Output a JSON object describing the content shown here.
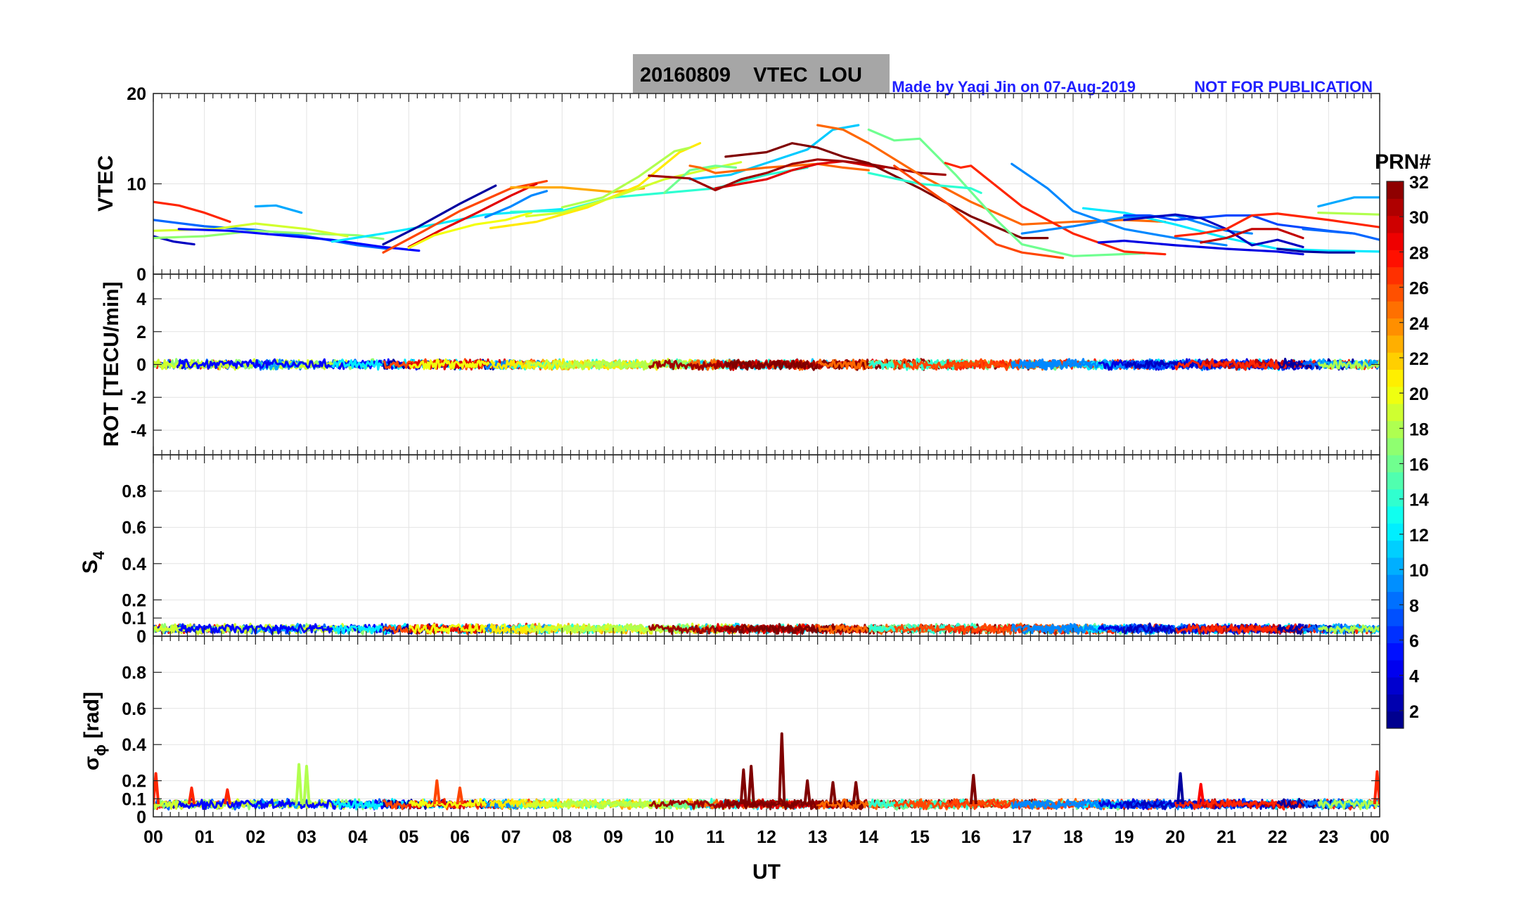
{
  "title": {
    "text": "20160809    VTEC  LOU",
    "credit": "Made by Yaqi Jin on 07-Aug-2019",
    "notice": "NOT FOR PUBLICATION"
  },
  "colorbar": {
    "label": "PRN#",
    "ticks": [
      "2",
      "4",
      "6",
      "8",
      "10",
      "12",
      "14",
      "16",
      "18",
      "20",
      "22",
      "24",
      "26",
      "28",
      "30",
      "32"
    ],
    "range": [
      1,
      32
    ]
  },
  "x_axis": {
    "label": "UT",
    "ticks": [
      "00",
      "01",
      "02",
      "03",
      "04",
      "05",
      "06",
      "07",
      "08",
      "09",
      "10",
      "11",
      "12",
      "13",
      "14",
      "15",
      "16",
      "17",
      "18",
      "19",
      "20",
      "21",
      "22",
      "23",
      "00"
    ],
    "range": [
      0,
      24
    ]
  },
  "chart_data": [
    {
      "type": "line",
      "name": "vtec-panel",
      "ylabel": "VTEC",
      "ylim": [
        0,
        20
      ],
      "yticks": [
        "0",
        "10",
        "20"
      ],
      "yticks_values": [
        0,
        10,
        20
      ],
      "series": [
        {
          "prn": 27,
          "x": [
            0.0,
            0.5,
            1.0,
            1.5
          ],
          "values": [
            8.0,
            7.6,
            6.8,
            5.8
          ]
        },
        {
          "prn": 8,
          "x": [
            0.0,
            1.0,
            2.0,
            3.0,
            4.0,
            4.6
          ],
          "values": [
            6.0,
            5.3,
            4.9,
            4.2,
            3.2,
            2.8
          ]
        },
        {
          "prn": 3,
          "x": [
            0.0,
            0.4,
            0.8
          ],
          "values": [
            4.2,
            3.6,
            3.3
          ]
        },
        {
          "prn": 17,
          "x": [
            0.0,
            1.0,
            2.0,
            3.0,
            4.0,
            4.5
          ],
          "values": [
            4.0,
            4.2,
            4.8,
            4.5,
            4.3,
            3.9
          ]
        },
        {
          "prn": 19,
          "x": [
            0.0,
            1.2,
            2.0,
            3.0,
            3.8
          ],
          "values": [
            4.8,
            5.0,
            5.6,
            5.0,
            4.2
          ]
        },
        {
          "prn": 10,
          "x": [
            2.0,
            2.4,
            2.9
          ],
          "values": [
            7.5,
            7.6,
            6.8
          ]
        },
        {
          "prn": 5,
          "x": [
            0.5,
            1.5,
            2.5,
            3.5,
            4.5,
            5.2
          ],
          "values": [
            5.0,
            4.8,
            4.3,
            3.8,
            3.0,
            2.6
          ]
        },
        {
          "prn": 12,
          "x": [
            3.5,
            4.5,
            5.5,
            6.5,
            7.5,
            8.0
          ],
          "values": [
            3.6,
            4.5,
            5.5,
            6.6,
            7.0,
            7.2
          ]
        },
        {
          "prn": 2,
          "x": [
            4.5,
            5.2,
            6.0,
            6.7
          ],
          "values": [
            3.3,
            5.3,
            7.8,
            9.8
          ]
        },
        {
          "prn": 26,
          "x": [
            4.5,
            5.3,
            6.0,
            7.0,
            7.7
          ],
          "values": [
            2.4,
            4.8,
            7.0,
            9.5,
            10.3
          ]
        },
        {
          "prn": 29,
          "x": [
            5.0,
            5.6,
            6.3,
            7.0,
            7.5
          ],
          "values": [
            3.0,
            4.8,
            6.7,
            8.7,
            10.0
          ]
        },
        {
          "prn": 20,
          "x": [
            5.0,
            5.5,
            6.3,
            6.9,
            7.4
          ],
          "values": [
            2.9,
            4.3,
            5.5,
            6.0,
            6.8
          ]
        },
        {
          "prn": 9,
          "x": [
            6.5,
            7.0,
            7.4,
            7.7
          ],
          "values": [
            6.3,
            7.5,
            8.7,
            9.2
          ]
        },
        {
          "prn": 23,
          "x": [
            7.0,
            8.0,
            9.0,
            9.6
          ],
          "values": [
            9.6,
            9.6,
            9.1,
            9.5
          ]
        },
        {
          "prn": 14,
          "x": [
            7.0,
            8.0,
            9.0,
            10.0,
            11.0,
            12.0,
            12.8
          ],
          "values": [
            6.9,
            7.0,
            8.5,
            9.0,
            9.5,
            11.0,
            11.8
          ]
        },
        {
          "prn": 21,
          "x": [
            6.6,
            7.5,
            8.5,
            9.5,
            10.3,
            10.7
          ],
          "values": [
            5.1,
            5.8,
            7.4,
            9.8,
            13.5,
            14.5
          ]
        },
        {
          "prn": 19,
          "x": [
            7.3,
            8.0,
            9.0,
            10.0,
            11.0,
            11.5
          ],
          "values": [
            6.4,
            6.8,
            8.5,
            10.5,
            11.8,
            12.4
          ]
        },
        {
          "prn": 18,
          "x": [
            8.0,
            8.8,
            9.5,
            10.2,
            10.5
          ],
          "values": [
            7.4,
            8.5,
            10.8,
            13.6,
            14.0
          ]
        },
        {
          "prn": 16,
          "x": [
            10.0,
            10.5,
            11.0,
            11.4
          ],
          "values": [
            9.0,
            11.5,
            12.0,
            11.8
          ]
        },
        {
          "prn": 11,
          "x": [
            10.5,
            11.3,
            12.0,
            12.8,
            13.3,
            13.8
          ],
          "values": [
            10.5,
            11.0,
            12.3,
            13.8,
            16.0,
            16.5
          ]
        },
        {
          "prn": 25,
          "x": [
            10.5,
            10.7,
            11.0,
            11.5,
            12.0,
            12.5,
            13.0,
            13.5,
            14.0
          ],
          "values": [
            12.0,
            11.8,
            11.2,
            11.5,
            11.8,
            12.0,
            12.2,
            11.8,
            11.5
          ]
        },
        {
          "prn": 29,
          "x": [
            11.0,
            12.0,
            12.5,
            13.0,
            13.5,
            14.0,
            14.3
          ],
          "values": [
            9.5,
            10.5,
            11.5,
            12.2,
            12.5,
            12.0,
            11.8
          ]
        },
        {
          "prn": 31,
          "x": [
            9.7,
            10.5,
            11.0,
            11.5,
            12.0,
            12.5,
            13.0,
            13.5,
            14.0,
            15.0,
            15.5
          ],
          "values": [
            10.9,
            10.6,
            9.3,
            10.5,
            11.2,
            12.2,
            12.7,
            12.5,
            12.2,
            11.2,
            11.0
          ]
        },
        {
          "prn": 32,
          "x": [
            11.2,
            12.0,
            12.5,
            13.0,
            13.5,
            14.0,
            15.0,
            16.0,
            17.0,
            17.5
          ],
          "values": [
            13.0,
            13.5,
            14.5,
            14.0,
            13.0,
            12.3,
            9.5,
            6.4,
            4.0,
            4.0
          ]
        },
        {
          "prn": 25,
          "x": [
            13.0,
            13.5,
            14.0,
            15.0,
            16.0,
            17.0,
            18.0,
            19.0,
            19.8
          ],
          "values": [
            16.5,
            16.0,
            14.5,
            11.0,
            8.0,
            5.5,
            5.8,
            6.0,
            5.8
          ]
        },
        {
          "prn": 16,
          "x": [
            14.0,
            14.5,
            15.0,
            15.7,
            16.5,
            17.0,
            18.0,
            19.4
          ],
          "values": [
            16.0,
            14.8,
            15.0,
            11.0,
            6.0,
            3.3,
            2.0,
            2.3
          ]
        },
        {
          "prn": 14,
          "x": [
            14.0,
            15.0,
            16.0,
            16.2
          ],
          "values": [
            11.2,
            10.0,
            9.5,
            9.0
          ]
        },
        {
          "prn": 27,
          "x": [
            15.5,
            15.8,
            16.0,
            17.0,
            18.0,
            19.0,
            19.8
          ],
          "values": [
            12.3,
            11.8,
            12.0,
            7.5,
            4.5,
            2.5,
            2.2
          ]
        },
        {
          "prn": 26,
          "x": [
            14.5,
            15.5,
            16.5,
            17.0,
            17.8
          ],
          "values": [
            12.0,
            8.0,
            3.3,
            2.4,
            1.8
          ]
        },
        {
          "prn": 9,
          "x": [
            16.8,
            17.5,
            18.0,
            19.0,
            20.0,
            21.0
          ],
          "values": [
            12.2,
            9.5,
            7.0,
            5.0,
            4.0,
            3.2
          ]
        },
        {
          "prn": 12,
          "x": [
            18.2,
            19.0,
            20.0,
            21.0,
            22.0,
            23.0,
            24.0
          ],
          "values": [
            7.3,
            6.8,
            5.5,
            4.0,
            2.8,
            2.6,
            2.5
          ]
        },
        {
          "prn": 9,
          "x": [
            17.0,
            18.0,
            19.0,
            20.0,
            21.0,
            21.5
          ],
          "values": [
            4.5,
            5.3,
            6.3,
            6.5,
            4.8,
            4.5
          ]
        },
        {
          "prn": 4,
          "x": [
            18.5,
            19.0,
            20.0,
            20.5,
            21.0,
            22.0,
            22.5
          ],
          "values": [
            3.5,
            3.7,
            3.2,
            3.0,
            2.8,
            2.5,
            2.2
          ]
        },
        {
          "prn": 7,
          "x": [
            19.0,
            19.5,
            20.0,
            21.0,
            21.5,
            22.0,
            23.0,
            23.5
          ],
          "values": [
            6.5,
            6.5,
            6.0,
            6.5,
            6.5,
            5.5,
            4.8,
            4.5
          ]
        },
        {
          "prn": 3,
          "x": [
            19.0,
            20.0,
            20.5,
            21.0,
            21.5,
            22.0,
            22.5
          ],
          "values": [
            6.0,
            6.6,
            6.2,
            5.0,
            3.2,
            3.8,
            3.0
          ]
        },
        {
          "prn": 30,
          "x": [
            20.5,
            21.0,
            21.5,
            22.0,
            22.5
          ],
          "values": [
            3.5,
            4.0,
            5.0,
            5.0,
            4.0
          ]
        },
        {
          "prn": 27,
          "x": [
            20.0,
            20.5,
            21.0,
            21.5,
            22.0,
            23.0,
            24.0
          ],
          "values": [
            4.2,
            4.5,
            5.0,
            6.5,
            6.7,
            6.0,
            5.2
          ]
        },
        {
          "prn": 2,
          "x": [
            22.0,
            22.5,
            23.0,
            23.5
          ],
          "values": [
            2.8,
            2.5,
            2.4,
            2.4
          ]
        },
        {
          "prn": 8,
          "x": [
            22.5,
            23.5,
            24.0
          ],
          "values": [
            5.0,
            4.5,
            3.8
          ]
        },
        {
          "prn": 10,
          "x": [
            22.8,
            23.5,
            24.0
          ],
          "values": [
            7.5,
            8.5,
            8.5
          ]
        },
        {
          "prn": 18,
          "x": [
            22.8,
            24.0
          ],
          "values": [
            6.8,
            6.6
          ]
        }
      ]
    },
    {
      "type": "line",
      "name": "rot-panel",
      "ylabel": "ROT [TECU/min]",
      "ylim": [
        -5.5,
        5.5
      ],
      "yticks": [
        "4",
        "2",
        "0",
        "-2",
        "-4"
      ],
      "yticks_values": [
        4,
        2,
        0,
        -2,
        -4
      ],
      "baseline": 0.0,
      "noise_amplitude": 0.35
    },
    {
      "type": "line",
      "name": "s4-panel",
      "ylabel": "S4",
      "ylim": [
        0,
        1.0
      ],
      "yticks": [
        "0",
        "0.1",
        "0.2",
        "0.4",
        "0.6",
        "0.8"
      ],
      "yticks_values": [
        0,
        0.1,
        0.2,
        0.4,
        0.6,
        0.8
      ],
      "baseline": 0.04,
      "noise_amplitude": 0.03
    },
    {
      "type": "line",
      "name": "sigma-phi-panel",
      "ylabel": "σφ [rad]",
      "ylim": [
        0,
        1.0
      ],
      "yticks": [
        "0",
        "0.1",
        "0.2",
        "0.4",
        "0.6",
        "0.8"
      ],
      "yticks_values": [
        0,
        0.1,
        0.2,
        0.4,
        0.6,
        0.8
      ],
      "baseline": 0.07,
      "noise_amplitude": 0.03,
      "spikes": [
        {
          "x": 0.05,
          "value": 0.24,
          "prn": 27
        },
        {
          "x": 0.75,
          "value": 0.16,
          "prn": 27
        },
        {
          "x": 1.45,
          "value": 0.15,
          "prn": 27
        },
        {
          "x": 2.85,
          "value": 0.29,
          "prn": 18
        },
        {
          "x": 3.0,
          "value": 0.28,
          "prn": 18
        },
        {
          "x": 5.55,
          "value": 0.2,
          "prn": 26
        },
        {
          "x": 6.0,
          "value": 0.16,
          "prn": 26
        },
        {
          "x": 11.55,
          "value": 0.26,
          "prn": 32
        },
        {
          "x": 11.7,
          "value": 0.28,
          "prn": 32
        },
        {
          "x": 12.3,
          "value": 0.46,
          "prn": 32
        },
        {
          "x": 12.8,
          "value": 0.2,
          "prn": 32
        },
        {
          "x": 13.3,
          "value": 0.19,
          "prn": 32
        },
        {
          "x": 13.75,
          "value": 0.19,
          "prn": 32
        },
        {
          "x": 16.05,
          "value": 0.23,
          "prn": 32
        },
        {
          "x": 20.1,
          "value": 0.24,
          "prn": 2
        },
        {
          "x": 20.5,
          "value": 0.18,
          "prn": 28
        },
        {
          "x": 23.95,
          "value": 0.25,
          "prn": 27
        }
      ]
    }
  ]
}
